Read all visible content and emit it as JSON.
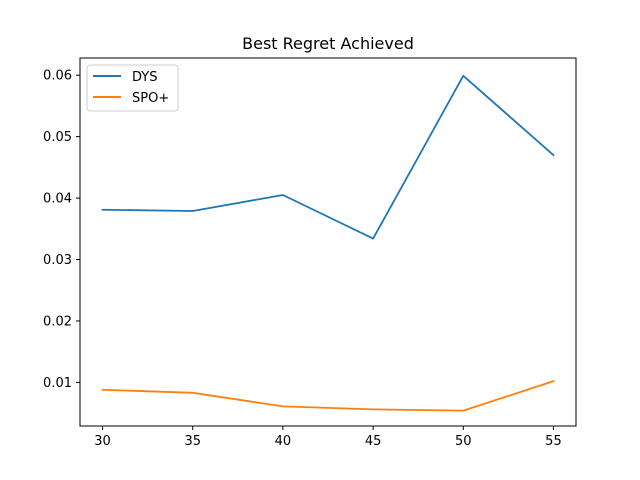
{
  "chart_data": {
    "type": "line",
    "title": "Best Regret Achieved",
    "xlabel": "",
    "ylabel": "",
    "x": [
      30,
      35,
      40,
      45,
      50,
      55
    ],
    "xlim": [
      28.75,
      56.25
    ],
    "ylim": [
      0.0029,
      0.0628
    ],
    "xticks": [
      "30",
      "35",
      "40",
      "45",
      "50",
      "55"
    ],
    "yticks": [
      "0.01",
      "0.02",
      "0.03",
      "0.04",
      "0.05",
      "0.06"
    ],
    "legend_position": "top-left",
    "grid": false,
    "series": [
      {
        "name": "DYS",
        "color": "#1f77b4",
        "values": [
          0.0381,
          0.0379,
          0.0405,
          0.0334,
          0.0599,
          0.047
        ]
      },
      {
        "name": "SPO+",
        "color": "#ff7f0e",
        "values": [
          0.0088,
          0.0083,
          0.0061,
          0.0056,
          0.0054,
          0.0102
        ]
      }
    ]
  }
}
